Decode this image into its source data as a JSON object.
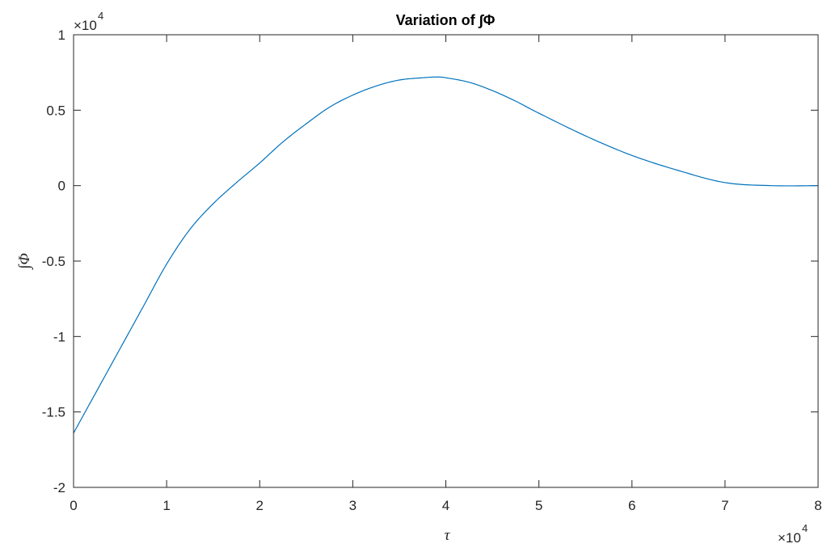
{
  "chart_data": {
    "type": "line",
    "title": "Variation of ∫Φ",
    "xlabel": "τ",
    "ylabel": "∫Φ",
    "x_exponent_label": "×10",
    "x_exponent": "4",
    "y_exponent_label": "×10",
    "y_exponent": "4",
    "xlim": [
      0,
      8
    ],
    "ylim": [
      -2,
      1
    ],
    "x_ticks": [
      0,
      1,
      2,
      3,
      4,
      5,
      6,
      7,
      8
    ],
    "x_tick_labels": [
      "0",
      "1",
      "2",
      "3",
      "4",
      "5",
      "6",
      "7",
      "8"
    ],
    "y_ticks": [
      1,
      0.5,
      0,
      -0.5,
      -1,
      -1.5,
      -2
    ],
    "y_tick_labels": [
      "1",
      "0.5",
      "0",
      "-0.5",
      "-1",
      "-1.5",
      "-2"
    ],
    "grid": false,
    "line_color": "#0072BD",
    "series": [
      {
        "x": [
          0,
          0.25,
          0.5,
          0.75,
          1,
          1.25,
          1.5,
          1.75,
          2,
          2.25,
          2.5,
          2.75,
          3,
          3.25,
          3.5,
          3.75,
          3.9,
          4,
          4.25,
          4.5,
          4.75,
          5,
          5.5,
          6,
          6.5,
          7,
          7.5,
          8
        ],
        "y": [
          -1.64,
          -1.36,
          -1.08,
          -0.8,
          -0.52,
          -0.29,
          -0.12,
          0.02,
          0.15,
          0.29,
          0.41,
          0.52,
          0.6,
          0.66,
          0.7,
          0.715,
          0.72,
          0.715,
          0.685,
          0.63,
          0.56,
          0.48,
          0.33,
          0.2,
          0.1,
          0.02,
          0.0,
          0.0
        ]
      }
    ]
  }
}
